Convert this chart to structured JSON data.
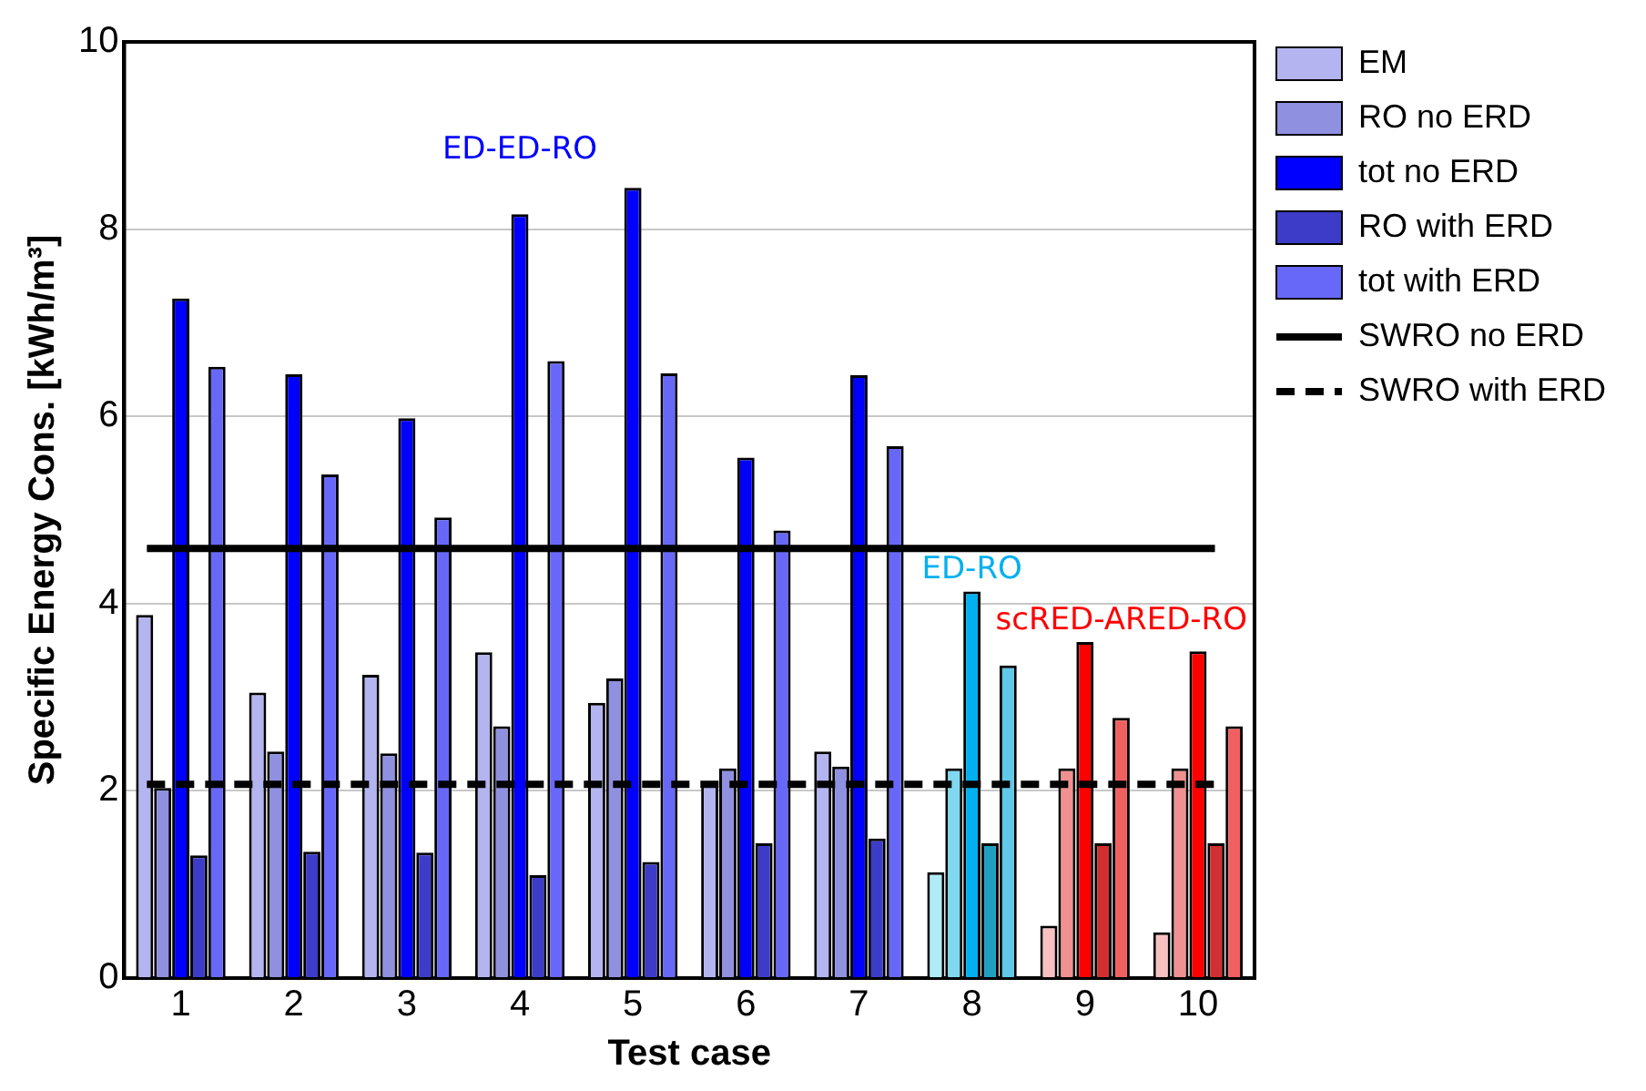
{
  "chart_data": {
    "type": "bar",
    "xlabel": "Test case",
    "ylabel": "Specific Energy Cons. [kWh/m³]",
    "categories": [
      "1",
      "2",
      "3",
      "4",
      "5",
      "6",
      "7",
      "8",
      "9",
      "10"
    ],
    "ylim": [
      0,
      10
    ],
    "yticks": [
      0,
      2,
      4,
      6,
      8,
      10
    ],
    "grid": "y",
    "legend": "top right",
    "series": [
      {
        "name": "EM",
        "color": "#b4b4f0",
        "values": [
          3.88,
          3.05,
          3.24,
          3.48,
          2.94,
          2.07,
          2.42,
          1.13,
          0.56,
          0.49
        ],
        "colors": [
          "#b4b4f0",
          "#b4b4f0",
          "#b4b4f0",
          "#b4b4f0",
          "#b4b4f0",
          "#b4b4f0",
          "#b4b4f0",
          "#b0ecf8",
          "#f8c0c0",
          "#f8c0c0"
        ]
      },
      {
        "name": "RO no ERD",
        "color": "#9090e0",
        "values": [
          2.03,
          2.42,
          2.4,
          2.69,
          3.2,
          2.24,
          2.26,
          2.24,
          2.24,
          2.24
        ],
        "colors": [
          "#9090e0",
          "#9090e0",
          "#9090e0",
          "#9090e0",
          "#9090e0",
          "#9090e0",
          "#9090e0",
          "#80d8f0",
          "#f09090",
          "#f09090"
        ]
      },
      {
        "name": "tot no ERD",
        "color": "#0000ff",
        "values": [
          7.26,
          6.45,
          5.98,
          8.16,
          8.44,
          5.56,
          6.44,
          4.13,
          3.59,
          3.49
        ],
        "colors": [
          "#0000ff",
          "#0000ff",
          "#0000ff",
          "#0000ff",
          "#0000ff",
          "#0000ff",
          "#0000ff",
          "#00b0f0",
          "#ff0000",
          "#ff0000"
        ]
      },
      {
        "name": "RO with ERD",
        "color": "#3c3cc8",
        "values": [
          1.31,
          1.35,
          1.34,
          1.1,
          1.24,
          1.44,
          1.49,
          1.44,
          1.44,
          1.44
        ],
        "colors": [
          "#3c3cc8",
          "#3c3cc8",
          "#3c3cc8",
          "#3c3cc8",
          "#3c3cc8",
          "#3c3cc8",
          "#3c3cc8",
          "#20a0c0",
          "#d03030",
          "#d03030"
        ]
      },
      {
        "name": "tot with ERD",
        "color": "#6868f8",
        "values": [
          6.53,
          5.38,
          4.92,
          6.59,
          6.46,
          4.78,
          5.68,
          3.34,
          2.78,
          2.69
        ],
        "colors": [
          "#6868f8",
          "#6868f8",
          "#6868f8",
          "#6868f8",
          "#6868f8",
          "#6868f8",
          "#6868f8",
          "#60c8e8",
          "#f06060",
          "#f06060"
        ]
      }
    ],
    "ref_lines": [
      {
        "axis": "y",
        "value": 4.59,
        "label": "SWRO no ERD",
        "color": "#000000",
        "line_style": "solid"
      },
      {
        "axis": "y",
        "value": 2.07,
        "label": "SWRO with ERD",
        "color": "#000000",
        "line_style": "dashed"
      }
    ],
    "annotations": [
      "ED-ED-RO",
      "ED-RO",
      "scRED-ARED-RO"
    ]
  }
}
